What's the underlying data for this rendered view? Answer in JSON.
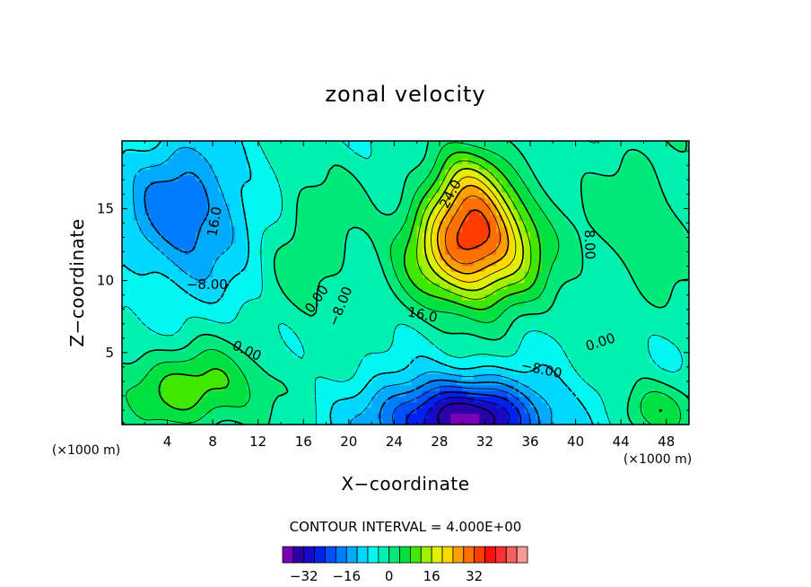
{
  "chart_data": {
    "type": "heatmap",
    "title": "zonal velocity",
    "xlabel": "X−coordinate",
    "ylabel": "Z−coordinate",
    "x_unit": "(×1000 m)",
    "y_unit": "(×1000 m)",
    "xlim": [
      0,
      50
    ],
    "ylim": [
      0,
      19.7
    ],
    "x_ticks": [
      4,
      8,
      12,
      16,
      20,
      24,
      28,
      32,
      36,
      40,
      44,
      48
    ],
    "y_ticks": [
      5,
      10,
      15
    ],
    "x_tick_labels": [
      "4",
      "8",
      "12",
      "16",
      "20",
      "24",
      "28",
      "32",
      "36",
      "40",
      "44",
      "48"
    ],
    "y_tick_labels": [
      "5",
      "10",
      "15"
    ],
    "contour_interval_label": "CONTOUR INTERVAL = 4.000E+00",
    "contour_interval": 4.0,
    "contour_labels": [
      {
        "text": "24.0",
        "x": 29.0,
        "y": 16.0,
        "rotate": -62
      },
      {
        "text": "16.0",
        "x": 8.2,
        "y": 14.1,
        "rotate": -80
      },
      {
        "text": "−8.00",
        "x": 7.5,
        "y": 9.7,
        "rotate": 0
      },
      {
        "text": "0.00",
        "x": 17.2,
        "y": 8.7,
        "rotate": -55
      },
      {
        "text": "−8.00",
        "x": 19.3,
        "y": 8.2,
        "rotate": -68
      },
      {
        "text": "16.0",
        "x": 26.5,
        "y": 7.6,
        "rotate": 12
      },
      {
        "text": "0.00",
        "x": 11.0,
        "y": 5.1,
        "rotate": 25
      },
      {
        "text": "−8.00",
        "x": 37.0,
        "y": 3.8,
        "rotate": 12
      },
      {
        "text": "0.00",
        "x": 42.2,
        "y": 5.7,
        "rotate": -18
      },
      {
        "text": "8.00",
        "x": 41.2,
        "y": 12.5,
        "rotate": 88
      }
    ],
    "features": [
      {
        "kind": "max",
        "x": 31,
        "y": 12,
        "value": 34
      },
      {
        "kind": "min",
        "x": 5.5,
        "y": 14.5,
        "value": -17
      },
      {
        "kind": "min",
        "x": 30,
        "y": 0.5,
        "value": -34
      }
    ],
    "colorbar": {
      "levels": [
        -36,
        -32,
        -28,
        -24,
        -20,
        -16,
        -12,
        -8,
        -4,
        0,
        4,
        8,
        12,
        16,
        20,
        24,
        28,
        32,
        36,
        40
      ],
      "colors": [
        "#7a00b8",
        "#2b00a8",
        "#1808c8",
        "#0020f0",
        "#0050ff",
        "#007cff",
        "#00aaff",
        "#00d8ff",
        "#00f8f0",
        "#00f0b0",
        "#00e878",
        "#00e040",
        "#40e800",
        "#a0f000",
        "#e0f000",
        "#ffd800",
        "#ffa000",
        "#ff7000",
        "#ff3c00",
        "#ff1010",
        "#ff3030",
        "#f86060",
        "#f89898"
      ],
      "tick_values": [
        -32,
        -16,
        0,
        16,
        32
      ],
      "tick_labels": [
        "−32",
        "−16",
        "0",
        "16",
        "32"
      ]
    }
  }
}
